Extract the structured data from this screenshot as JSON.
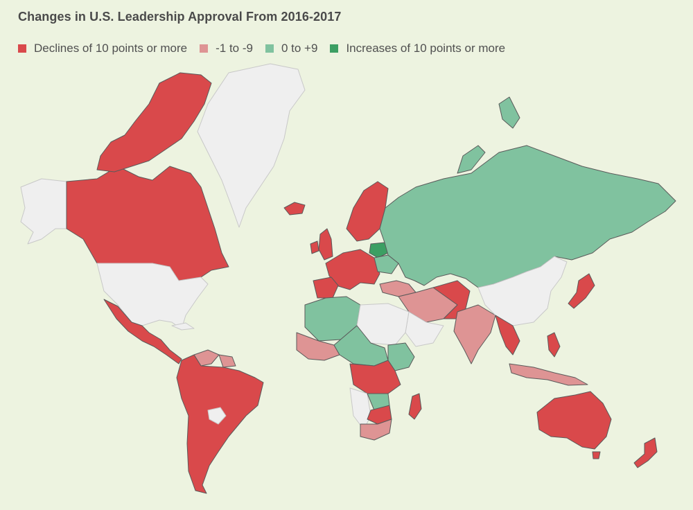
{
  "title": "Changes in U.S. Leadership Approval From 2016-2017",
  "legend": [
    {
      "label": "Declines of 10 points or more",
      "color": "#d9494b"
    },
    {
      "label": "-1 to -9",
      "color": "#de9494"
    },
    {
      "label": "0 to +9",
      "color": "#80c29f"
    },
    {
      "label": "Increases of 10 points or more",
      "color": "#3c9f63"
    }
  ],
  "nodata_color": "#efefef",
  "background": "#edf3e0"
}
